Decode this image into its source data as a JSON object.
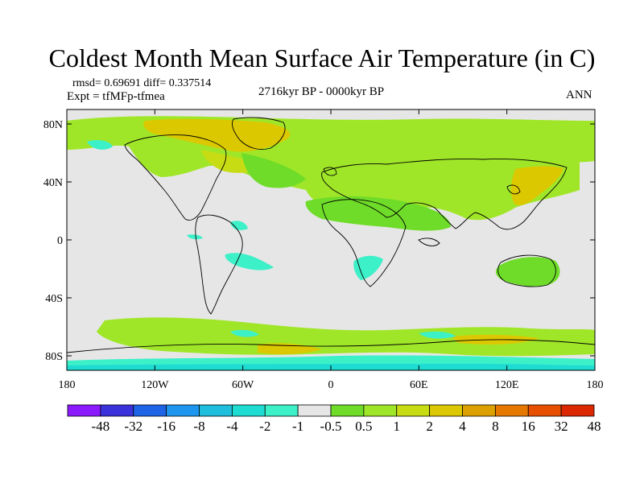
{
  "title": "Coldest Month Mean Surface Air Temperature (in C)",
  "stats": "rmsd= 0.69691 diff= 0.337514",
  "experiment": "Expt = tfMFp-tfmea",
  "period": "2716kyr BP - 0000kyr BP",
  "season": "ANN",
  "map": {
    "lon_ticks": [
      "180",
      "120W",
      "60W",
      "0",
      "60E",
      "120E",
      "180"
    ],
    "lat_ticks": [
      "80N",
      "40N",
      "0",
      "40S",
      "80S"
    ],
    "background_color": "#e6e6e6",
    "coastline_color": "#000000"
  },
  "colorbar": {
    "colors": [
      "#8c1aff",
      "#3c32dc",
      "#1e64e6",
      "#1e96f0",
      "#1ebedc",
      "#1edcd2",
      "#3cf0c8",
      "#e6e6e6",
      "#6edc28",
      "#a0e628",
      "#c8dc14",
      "#dcc800",
      "#dca000",
      "#e67800",
      "#e65000",
      "#dc2800"
    ],
    "labels": [
      "-48",
      "-32",
      "-16",
      "-8",
      "-4",
      "-2",
      "-1",
      "-0.5",
      "0.5",
      "1",
      "2",
      "4",
      "8",
      "16",
      "32",
      "48"
    ]
  }
}
